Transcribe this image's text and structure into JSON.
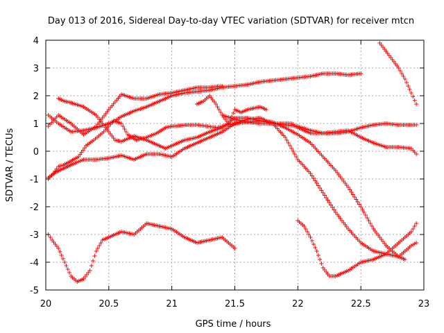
{
  "chart_data": {
    "type": "scatter",
    "title": "Day 013 of 2016, Sidereal Day-to-day VTEC variation (SDTVAR) for receiver mtcn",
    "xlabel": "GPS time / hours",
    "ylabel": "SDTVAR / TECUs",
    "xlim": [
      20,
      23
    ],
    "ylim": [
      -5,
      4
    ],
    "xticks": [
      "20",
      "20.5",
      "21",
      "21.5",
      "22",
      "22.5",
      "23"
    ],
    "yticks": [
      "4",
      "3",
      "2",
      "1",
      "0",
      "-1",
      "-2",
      "-3",
      "-4",
      "-5"
    ],
    "grid": true,
    "marker": "plus",
    "series_color": "#ff0000",
    "series": [
      {
        "x": [
          20.02,
          20.06,
          20.1,
          20.14,
          20.2,
          20.26,
          20.32,
          20.38,
          20.46,
          20.54,
          20.6,
          20.65,
          20.72,
          20.8,
          20.88,
          20.95,
          21.0,
          21.06,
          21.12,
          21.2,
          21.28,
          21.36,
          21.44,
          21.52,
          21.6,
          21.7,
          21.8,
          21.9,
          22.0,
          22.1,
          22.2,
          22.3,
          22.4,
          22.5,
          22.6,
          22.7,
          22.8,
          22.9,
          22.94
        ],
        "y": [
          -1.0,
          -0.8,
          -0.55,
          -0.5,
          -0.35,
          -0.2,
          0.2,
          0.4,
          0.7,
          1.1,
          1.0,
          0.6,
          0.4,
          0.5,
          0.65,
          0.85,
          0.9,
          0.92,
          0.95,
          0.95,
          0.9,
          0.85,
          0.95,
          1.0,
          1.05,
          1.0,
          1.0,
          0.95,
          0.9,
          0.75,
          0.65,
          0.65,
          0.7,
          0.85,
          0.95,
          1.0,
          0.95,
          0.95,
          0.95
        ]
      },
      {
        "x": [
          20.02,
          20.1,
          20.2,
          20.3,
          20.4,
          20.5,
          20.6,
          20.7,
          20.8,
          20.9,
          21.0,
          21.1,
          21.2,
          21.3,
          21.4
        ],
        "y": [
          0.9,
          1.3,
          1.0,
          0.6,
          0.9,
          1.5,
          2.05,
          1.9,
          1.9,
          2.05,
          2.1,
          2.2,
          2.3,
          2.3,
          2.35
        ]
      },
      {
        "x": [
          20.1,
          20.15,
          20.2,
          20.3,
          20.4,
          20.5,
          20.55,
          20.6,
          20.7,
          20.8,
          20.9,
          20.95,
          21.0,
          21.05,
          21.1,
          21.2,
          21.3,
          21.4,
          21.5,
          21.6,
          21.7,
          21.8,
          21.9,
          21.95,
          22.0,
          22.1,
          22.2,
          22.3,
          22.4,
          22.5,
          22.6,
          22.7,
          22.8,
          22.9,
          22.94
        ],
        "y": [
          1.9,
          1.8,
          1.75,
          1.6,
          1.3,
          0.7,
          0.4,
          0.35,
          0.55,
          0.4,
          0.2,
          0.1,
          0.2,
          0.3,
          0.4,
          0.5,
          0.7,
          0.85,
          1.2,
          1.2,
          1.1,
          1.0,
          1.0,
          1.0,
          0.85,
          0.65,
          0.65,
          0.7,
          0.75,
          0.5,
          0.3,
          0.15,
          0.15,
          0.1,
          -0.1
        ]
      },
      {
        "x": [
          20.02,
          20.1,
          20.2,
          20.3,
          20.4,
          20.5,
          20.55,
          20.6,
          20.7,
          20.8,
          20.9,
          21.0,
          21.1,
          21.2,
          21.3,
          21.4,
          21.5,
          21.6,
          21.7,
          21.8,
          21.9,
          22.0,
          22.1,
          22.2,
          22.3,
          22.4,
          22.5
        ],
        "y": [
          1.3,
          1.0,
          0.7,
          0.75,
          0.85,
          1.0,
          1.1,
          1.25,
          1.45,
          1.6,
          1.8,
          2.0,
          2.1,
          2.15,
          2.2,
          2.3,
          2.35,
          2.4,
          2.5,
          2.55,
          2.6,
          2.65,
          2.7,
          2.8,
          2.8,
          2.75,
          2.8
        ]
      },
      {
        "x": [
          20.02,
          20.08,
          20.15,
          20.22,
          20.3,
          20.4,
          20.5,
          20.6,
          20.7,
          20.8,
          20.9,
          21.0,
          21.1,
          21.2,
          21.3,
          21.4,
          21.5,
          21.6,
          21.7,
          21.8,
          21.9,
          22.0,
          22.1,
          22.2,
          22.3,
          22.4,
          22.5,
          22.6,
          22.7,
          22.8,
          22.9,
          22.94
        ],
        "y": [
          -0.95,
          -0.75,
          -0.6,
          -0.45,
          -0.3,
          -0.3,
          -0.25,
          -0.15,
          -0.3,
          -0.1,
          -0.1,
          -0.2,
          0.1,
          0.3,
          0.5,
          0.7,
          1.0,
          1.15,
          1.2,
          1.0,
          0.5,
          -0.3,
          -0.8,
          -1.5,
          -2.2,
          -2.8,
          -3.3,
          -3.6,
          -3.7,
          -3.8,
          -3.4,
          -3.3
        ]
      },
      {
        "x": [
          20.02,
          20.05,
          20.1,
          20.15,
          20.2,
          20.25,
          20.3,
          20.35,
          20.4,
          20.45,
          20.5,
          20.6,
          20.7,
          20.8,
          20.9,
          21.0,
          21.1,
          21.2,
          21.3,
          21.4,
          21.5
        ],
        "y": [
          -3.0,
          -3.2,
          -3.5,
          -4.0,
          -4.5,
          -4.7,
          -4.6,
          -4.3,
          -3.6,
          -3.2,
          -3.1,
          -2.9,
          -3.0,
          -2.6,
          -2.7,
          -2.8,
          -3.1,
          -3.3,
          -3.2,
          -3.1,
          -3.5
        ]
      },
      {
        "x": [
          22.0,
          22.05,
          22.1,
          22.15,
          22.2,
          22.25,
          22.3,
          22.4,
          22.5,
          22.6,
          22.7,
          22.8,
          22.9,
          22.94
        ],
        "y": [
          -2.5,
          -2.7,
          -3.1,
          -3.6,
          -4.2,
          -4.5,
          -4.5,
          -4.3,
          -4.0,
          -3.9,
          -3.7,
          -3.3,
          -2.9,
          -2.6
        ]
      },
      {
        "x": [
          22.65,
          22.7,
          22.75,
          22.8,
          22.85,
          22.9,
          22.94
        ],
        "y": [
          3.9,
          3.6,
          3.3,
          3.0,
          2.6,
          2.1,
          1.7
        ]
      },
      {
        "x": [
          21.4,
          21.5,
          21.6,
          21.7,
          21.8,
          21.9,
          22.0,
          22.1,
          22.2,
          22.3,
          22.4,
          22.5,
          22.6,
          22.7,
          22.8,
          22.85
        ],
        "y": [
          1.3,
          1.15,
          1.05,
          1.1,
          1.05,
          0.85,
          0.6,
          0.3,
          -0.2,
          -0.7,
          -1.3,
          -2.0,
          -2.8,
          -3.4,
          -3.8,
          -3.9
        ]
      },
      {
        "x": [
          21.2,
          21.25,
          21.3,
          21.35,
          21.4,
          21.45,
          21.5,
          21.55,
          21.6,
          21.7,
          21.75
        ],
        "y": [
          1.7,
          1.8,
          2.0,
          1.7,
          1.3,
          1.0,
          1.5,
          1.4,
          1.5,
          1.6,
          1.5
        ]
      }
    ]
  }
}
